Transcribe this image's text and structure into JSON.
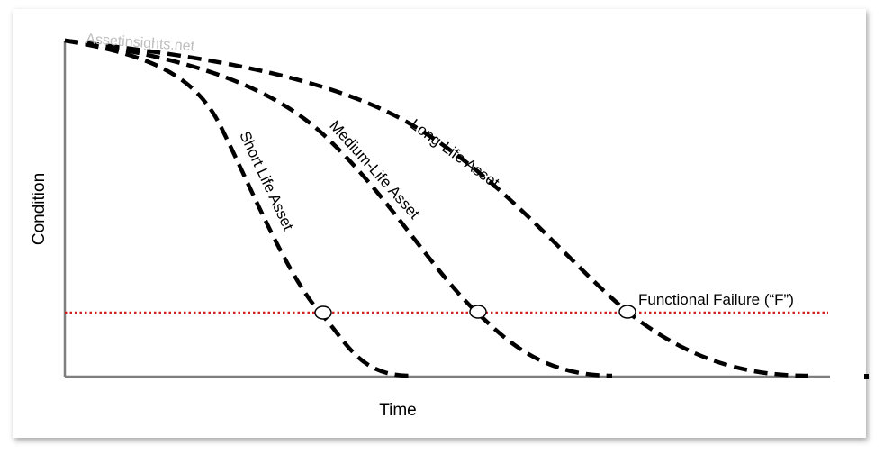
{
  "watermark": "Assetinsights.net",
  "axes": {
    "x_label": "Time",
    "y_label": "Condition"
  },
  "threshold": {
    "label": "Functional Failure (“F”)",
    "color": "#d42020"
  },
  "curves": [
    {
      "id": "short",
      "label": "Short Life Asset"
    },
    {
      "id": "medium",
      "label": "Medium-Life Asset"
    },
    {
      "id": "long",
      "label": "Long-Life Asset"
    }
  ],
  "colors": {
    "curve": "#000000",
    "axis": "#7f7f7f"
  }
}
